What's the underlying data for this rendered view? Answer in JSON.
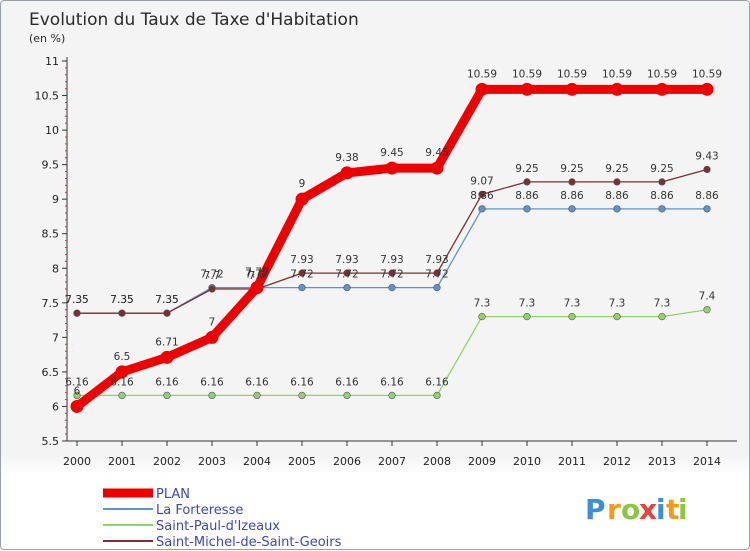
{
  "header": {
    "title": "Evolution du Taux de Taxe d'Habitation",
    "subtitle": "(en %)"
  },
  "brand": {
    "letters": [
      "P",
      "r",
      "o",
      "x",
      "i",
      "t",
      "i"
    ],
    "colors": [
      "#3b8fd9",
      "#f39a1a",
      "#8cc63e",
      "#e8423c",
      "#3b8fd9",
      "#f39a1a",
      "#8cc63e"
    ]
  },
  "chart_data": {
    "type": "line",
    "x": [
      "2000",
      "2001",
      "2002",
      "2003",
      "2004",
      "2005",
      "2006",
      "2007",
      "2008",
      "2009",
      "2010",
      "2011",
      "2012",
      "2013",
      "2014"
    ],
    "ylim": [
      5.5,
      11
    ],
    "yticks": [
      "5.5",
      "6",
      "6.5",
      "7",
      "7.5",
      "8",
      "8.5",
      "9",
      "9.5",
      "10",
      "10.5",
      "11"
    ],
    "grid": false,
    "legend_position": "bottom-left",
    "series": [
      {
        "name": "PLAN",
        "color": "#ee0000",
        "values": [
          6,
          6.5,
          6.71,
          7,
          7.72,
          9,
          9.38,
          9.45,
          9.45,
          10.59,
          10.59,
          10.59,
          10.59,
          10.59,
          10.59
        ],
        "labels": [
          "6",
          "6.5",
          "6.71",
          "7",
          "7.72",
          "9",
          "9.38",
          "9.45",
          "9.45",
          "10.59",
          "10.59",
          "10.59",
          "10.59",
          "10.59",
          "10.59"
        ]
      },
      {
        "name": "La Forteresse",
        "color": "#5b95c9",
        "values": [
          7.35,
          7.35,
          7.35,
          7.72,
          7.72,
          7.72,
          7.72,
          7.72,
          7.72,
          8.86,
          8.86,
          8.86,
          8.86,
          8.86,
          8.86
        ],
        "labels": [
          "7.35",
          "7.35",
          "7.35",
          "7.72",
          "7.72",
          "7.72",
          "7.72",
          "7.72",
          "7.72",
          "8.86",
          "8.86",
          "8.86",
          "8.86",
          "8.86",
          "8.86"
        ]
      },
      {
        "name": "Saint-Paul-d'Izeaux",
        "color": "#8fd46a",
        "values": [
          6.16,
          6.16,
          6.16,
          6.16,
          6.16,
          6.16,
          6.16,
          6.16,
          6.16,
          7.3,
          7.3,
          7.3,
          7.3,
          7.3,
          7.4
        ],
        "labels": [
          "6.16",
          "6.16",
          "6.16",
          "6.16",
          "6.16",
          "6.16",
          "6.16",
          "6.16",
          "6.16",
          "7.3",
          "7.3",
          "7.3",
          "7.3",
          "7.3",
          "7.4"
        ]
      },
      {
        "name": "Saint-Michel-de-Saint-Geoirs",
        "color": "#7a2f34",
        "values": [
          7.35,
          7.35,
          7.35,
          7.7,
          7.7,
          7.93,
          7.93,
          7.93,
          7.93,
          9.07,
          9.25,
          9.25,
          9.25,
          9.25,
          9.43
        ],
        "labels": [
          "7.35",
          "7.35",
          "7.35",
          "7.7",
          "7.7",
          "7.93",
          "7.93",
          "7.93",
          "7.93",
          "9.07",
          "9.25",
          "9.25",
          "9.25",
          "9.25",
          "9.43"
        ]
      }
    ]
  }
}
